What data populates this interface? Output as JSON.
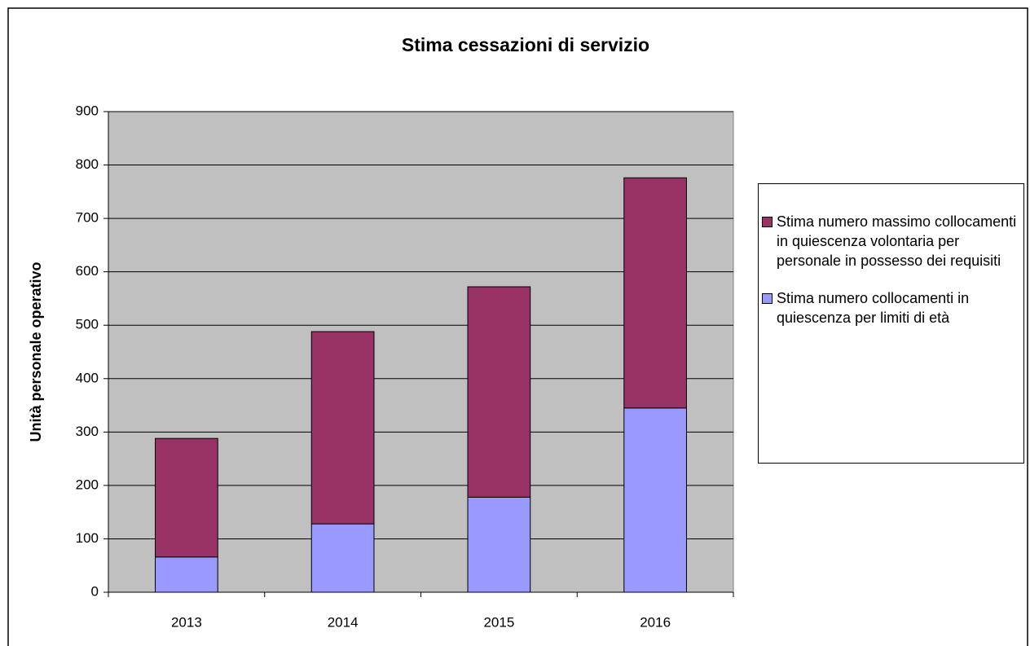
{
  "chart_data": {
    "type": "bar",
    "stacked": true,
    "title": "Stima cessazioni di servizio",
    "y_label": "Unità personale operativo",
    "categories": [
      "2013",
      "2014",
      "2015",
      "2016"
    ],
    "series": [
      {
        "name": "Stima numero collocamenti in quiescenza per limiti di età",
        "color": "#9999ff",
        "values": [
          66,
          128,
          178,
          345
        ]
      },
      {
        "name": "Stima numero massimo collocamenti in quiescenza volontaria per personale in possesso dei requisiti",
        "color": "#993366",
        "values": [
          222,
          360,
          394,
          431
        ]
      }
    ],
    "ylim": [
      0,
      900
    ],
    "yticks": [
      0,
      100,
      200,
      300,
      400,
      500,
      600,
      700,
      800,
      900
    ],
    "grid": true
  }
}
